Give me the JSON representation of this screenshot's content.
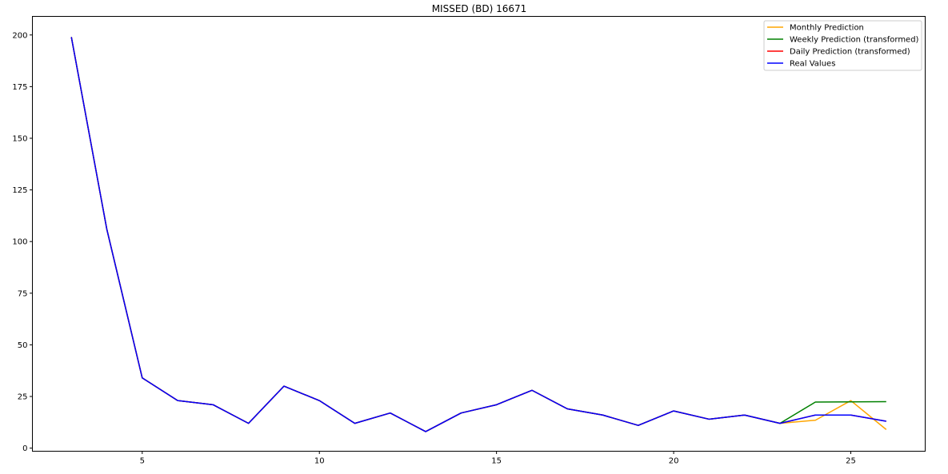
{
  "chart_data": {
    "type": "line",
    "title": "MISSED (BD) 16671",
    "xlabel": "",
    "ylabel": "",
    "xlim": [
      1.9,
      27.1
    ],
    "ylim": [
      -1.5,
      209
    ],
    "xticks": [
      5,
      10,
      15,
      20,
      25
    ],
    "yticks": [
      0,
      25,
      50,
      75,
      100,
      125,
      150,
      175,
      200
    ],
    "grid": false,
    "legend_position": "top-right",
    "series": [
      {
        "name": "Monthly Prediction",
        "color": "#ffa500",
        "x": [
          3,
          4,
          5,
          6,
          7,
          8,
          9,
          10,
          11,
          12,
          13,
          14,
          15,
          16,
          17,
          18,
          19,
          20,
          21,
          22,
          23,
          24,
          25,
          26
        ],
        "values": [
          199,
          106,
          34,
          23,
          21,
          12,
          30,
          23,
          12,
          17,
          8,
          17,
          21,
          28,
          19,
          16,
          11,
          18,
          14,
          16,
          12,
          13.5,
          23,
          9
        ]
      },
      {
        "name": "Weekly Prediction (transformed)",
        "color": "#008000",
        "x": [
          3,
          4,
          5,
          6,
          7,
          8,
          9,
          10,
          11,
          12,
          13,
          14,
          15,
          16,
          17,
          18,
          19,
          20,
          21,
          22,
          23,
          24,
          25,
          26
        ],
        "values": [
          199,
          106,
          34,
          23,
          21,
          12,
          30,
          23,
          12,
          17,
          8,
          17,
          21,
          28,
          19,
          16,
          11,
          18,
          14,
          16,
          12,
          22.3,
          22.4,
          22.5
        ]
      },
      {
        "name": "Daily Prediction (transformed)",
        "color": "#ff0000",
        "x": [
          3,
          4,
          5,
          6,
          7,
          8,
          9,
          10,
          11,
          12,
          13,
          14,
          15,
          16,
          17,
          18,
          19,
          20,
          21,
          22,
          23,
          24,
          25,
          26
        ],
        "values": [
          199,
          106,
          34,
          23,
          21,
          12,
          30,
          23,
          12,
          17,
          8,
          17,
          21,
          28,
          19,
          16,
          11,
          18,
          14,
          16,
          12,
          16,
          16,
          13
        ]
      },
      {
        "name": "Real Values",
        "color": "#0000ff",
        "x": [
          3,
          4,
          5,
          6,
          7,
          8,
          9,
          10,
          11,
          12,
          13,
          14,
          15,
          16,
          17,
          18,
          19,
          20,
          21,
          22,
          23,
          24,
          25,
          26
        ],
        "values": [
          199,
          106,
          34,
          23,
          21,
          12,
          30,
          23,
          12,
          17,
          8,
          17,
          21,
          28,
          19,
          16,
          11,
          18,
          14,
          16,
          12,
          16,
          16,
          13
        ]
      }
    ]
  }
}
